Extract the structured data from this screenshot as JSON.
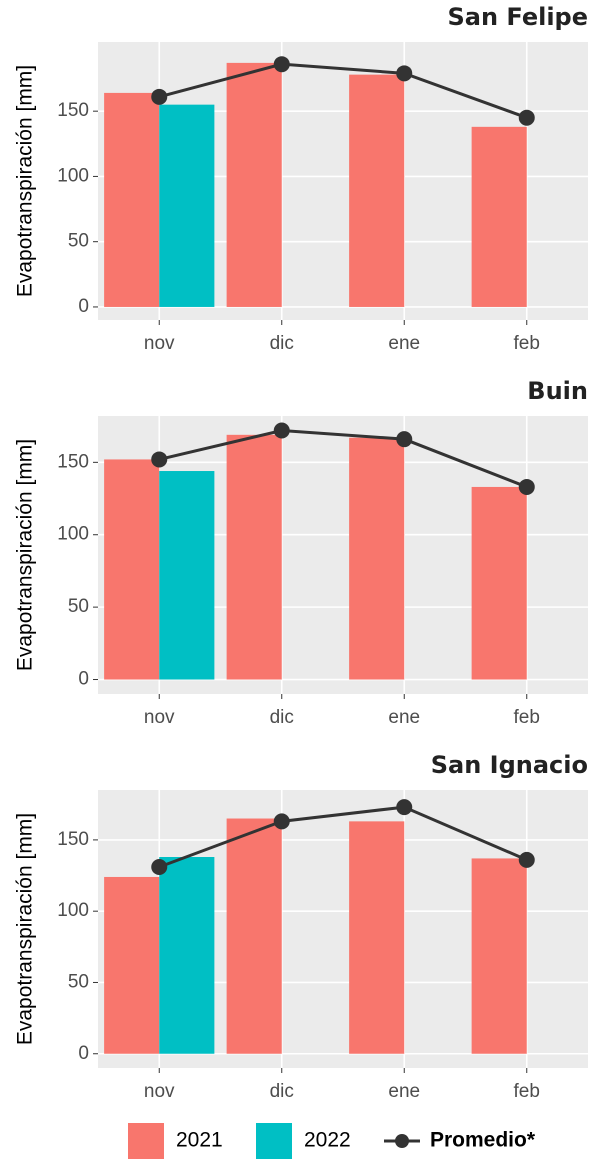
{
  "chart_data": [
    {
      "type": "bar",
      "title": "San Felipe",
      "ylabel": "Evapotranspiración [mm]",
      "categories": [
        "nov",
        "dic",
        "ene",
        "feb"
      ],
      "series": [
        {
          "name": "2021",
          "color": "#f8766d",
          "values": [
            164,
            187,
            178,
            138
          ]
        },
        {
          "name": "2022",
          "color": "#00bfc4",
          "values": [
            155,
            null,
            null,
            null
          ]
        },
        {
          "name": "Promedio*",
          "type": "line",
          "color": "#333333",
          "values": [
            161,
            186,
            179,
            145
          ]
        }
      ],
      "ylim": [
        -10,
        203
      ],
      "yticks": [
        0,
        50,
        100,
        150
      ],
      "grid": true
    },
    {
      "type": "bar",
      "title": "Buin",
      "ylabel": "Evapotranspiración [mm]",
      "categories": [
        "nov",
        "dic",
        "ene",
        "feb"
      ],
      "series": [
        {
          "name": "2021",
          "color": "#f8766d",
          "values": [
            152,
            169,
            167,
            133
          ]
        },
        {
          "name": "2022",
          "color": "#00bfc4",
          "values": [
            144,
            null,
            null,
            null
          ]
        },
        {
          "name": "Promedio*",
          "type": "line",
          "color": "#333333",
          "values": [
            152,
            172,
            166,
            133
          ]
        }
      ],
      "ylim": [
        -10,
        182
      ],
      "yticks": [
        0,
        50,
        100,
        150
      ],
      "grid": true
    },
    {
      "type": "bar",
      "title": "San Ignacio",
      "ylabel": "Evapotranspiración [mm]",
      "categories": [
        "nov",
        "dic",
        "ene",
        "feb"
      ],
      "series": [
        {
          "name": "2021",
          "color": "#f8766d",
          "values": [
            124,
            165,
            163,
            137
          ]
        },
        {
          "name": "2022",
          "color": "#00bfc4",
          "values": [
            138,
            null,
            null,
            null
          ]
        },
        {
          "name": "Promedio*",
          "type": "line",
          "color": "#333333",
          "values": [
            131,
            163,
            173,
            136
          ]
        }
      ],
      "ylim": [
        -10,
        185
      ],
      "yticks": [
        0,
        50,
        100,
        150
      ],
      "grid": true
    }
  ]
}
